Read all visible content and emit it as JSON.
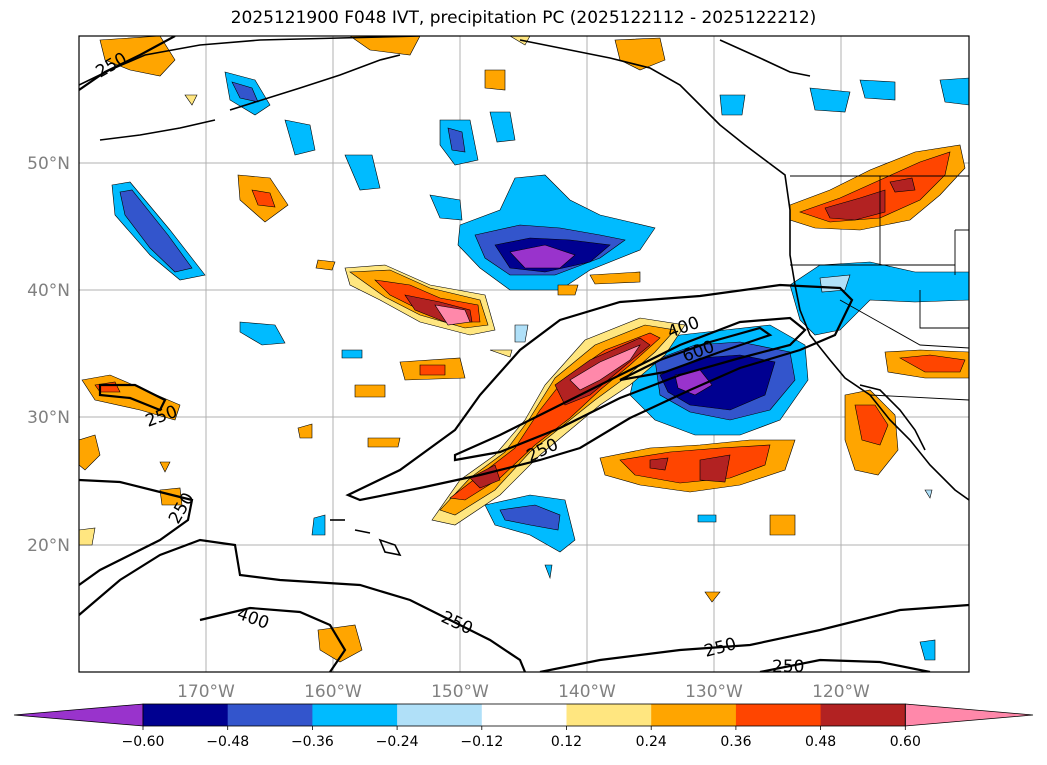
{
  "title": "2025121900 F048 IVT, precipitation PC (2025122112 - 2025122212)",
  "lat_labels": [
    "50°N",
    "40°N",
    "30°N",
    "20°N"
  ],
  "lon_labels": [
    "170°W",
    "160°W",
    "150°W",
    "140°W",
    "130°W",
    "120°W"
  ],
  "colorbar": {
    "ticks": [
      "−0.60",
      "−0.48",
      "−0.36",
      "−0.24",
      "−0.12",
      "0.12",
      "0.24",
      "0.36",
      "0.48",
      "0.60"
    ],
    "colors": [
      "#9933cc",
      "#000090",
      "#3355cc",
      "#00bbff",
      "#b0e0f8",
      "#ffffff",
      "#ffe680",
      "#ffa500",
      "#ff4500",
      "#b22222",
      "#ff88aa"
    ]
  },
  "contour_labels": [
    "250",
    "400",
    "600"
  ]
}
